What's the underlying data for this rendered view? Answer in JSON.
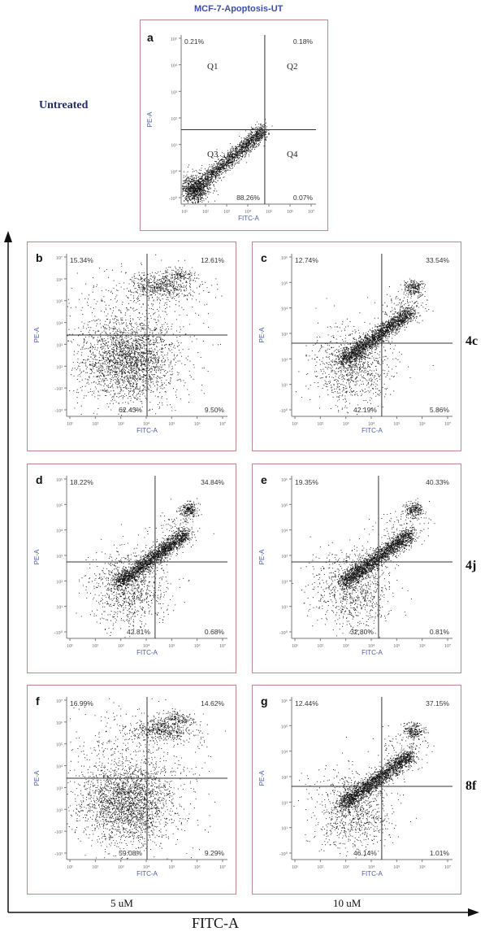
{
  "figure": {
    "top_title": "MCF-7-Apoptosis-UT",
    "untreated_label": "Untreated",
    "row_labels": [
      "4c",
      "4j",
      "8f"
    ],
    "column_labels": [
      "5 uM",
      "10 uM"
    ],
    "x_axis_title": "FITC-A"
  },
  "chart_data": [
    {
      "type": "scatter",
      "panel": "a",
      "xlabel": "FITC-A",
      "ylabel": "PE-A",
      "pattern": "diagonal",
      "quadrant_labels": [
        "Q1",
        "Q2",
        "Q3",
        "Q4"
      ],
      "quadrants": {
        "q1": "0.21%",
        "q2": "0.18%",
        "q3": "88.26%",
        "q4": "0.07%"
      },
      "ytick_labels": [
        "10⁵",
        "10⁴",
        "10³",
        "10²",
        "10¹",
        "10⁰",
        "-10⁰"
      ],
      "xtick_labels": [
        "10¹",
        "10²",
        "10³",
        "10⁴",
        "10⁵",
        "10⁶",
        "10⁷"
      ]
    },
    {
      "type": "scatter",
      "panel": "b",
      "xlabel": "FITC-A",
      "ylabel": "PE-A",
      "pattern": "blob",
      "quadrants": {
        "q1": "15.34%",
        "q2": "12.61%",
        "q3": "62.43%",
        "q4": "9.50%"
      },
      "ytick_labels": [
        "10⁷",
        "10⁶",
        "10⁵",
        "10⁴",
        "10³",
        "10²",
        "-10²",
        "-10³"
      ],
      "xtick_labels": [
        "10¹",
        "10²",
        "10³",
        "10⁴",
        "10⁵",
        "10⁶",
        "10⁷"
      ]
    },
    {
      "type": "scatter",
      "panel": "c",
      "xlabel": "FITC-A",
      "ylabel": "PE-A",
      "pattern": "diagonal",
      "quadrants": {
        "q1": "12.74%",
        "q2": "33.54%",
        "q3": "42.19%",
        "q4": "5.86%"
      },
      "ytick_labels": [
        "10⁶",
        "10⁵",
        "10⁴",
        "10³",
        "10²",
        "10¹",
        "-10⁰"
      ],
      "xtick_labels": [
        "10¹",
        "10²",
        "10³",
        "10⁴",
        "10⁵",
        "10⁶",
        "10⁷"
      ]
    },
    {
      "type": "scatter",
      "panel": "d",
      "xlabel": "FITC-A",
      "ylabel": "PE-A",
      "pattern": "diagonal",
      "quadrants": {
        "q1": "18.22%",
        "q2": "34.84%",
        "q3": "42.81%",
        "q4": "0.68%"
      },
      "ytick_labels": [
        "10⁶",
        "10⁵",
        "10⁴",
        "10³",
        "10²",
        "10¹",
        "-10⁰"
      ],
      "xtick_labels": [
        "10¹",
        "10²",
        "10³",
        "10⁴",
        "10⁵",
        "10⁶",
        "10⁷"
      ]
    },
    {
      "type": "scatter",
      "panel": "e",
      "xlabel": "FITC-A",
      "ylabel": "PE-A",
      "pattern": "diagonal",
      "quadrants": {
        "q1": "19.35%",
        "q2": "40.33%",
        "q3": "32.80%",
        "q4": "0.81%"
      },
      "ytick_labels": [
        "10⁶",
        "10⁵",
        "10⁴",
        "10³",
        "10²",
        "10¹",
        "-10⁰"
      ],
      "xtick_labels": [
        "10¹",
        "10²",
        "10³",
        "10⁴",
        "10⁵",
        "10⁶",
        "10⁷"
      ]
    },
    {
      "type": "scatter",
      "panel": "f",
      "xlabel": "FITC-A",
      "ylabel": "PE-A",
      "pattern": "blob",
      "quadrants": {
        "q1": "16.99%",
        "q2": "14.62%",
        "q3": "59.08%",
        "q4": "9.29%"
      },
      "ytick_labels": [
        "10⁷",
        "10⁶",
        "10⁵",
        "10⁴",
        "10³",
        "10²",
        "-10²",
        "-10³"
      ],
      "xtick_labels": [
        "10¹",
        "10²",
        "10³",
        "10⁴",
        "10⁵",
        "10⁶",
        "10⁷"
      ]
    },
    {
      "type": "scatter",
      "panel": "g",
      "xlabel": "FITC-A",
      "ylabel": "PE-A",
      "pattern": "diagonal",
      "quadrants": {
        "q1": "12.44%",
        "q2": "37.15%",
        "q3": "46.14%",
        "q4": "1.01%"
      },
      "ytick_labels": [
        "10⁶",
        "10⁵",
        "10⁴",
        "10³",
        "10²",
        "10¹",
        "-10⁰"
      ],
      "xtick_labels": [
        "10¹",
        "10²",
        "10³",
        "10⁴",
        "10⁵",
        "10⁶",
        "10⁷"
      ]
    }
  ]
}
